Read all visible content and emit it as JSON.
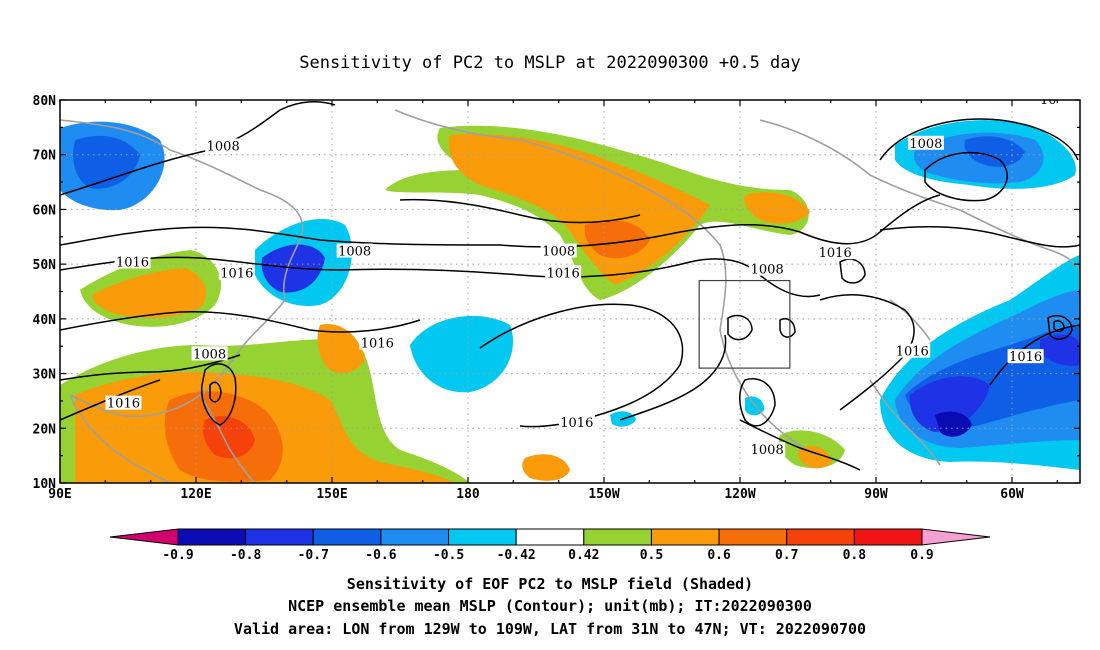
{
  "title": "Sensitivity of PC2 to MSLP at 2022090300 +0.5 day",
  "lon_ticks": [
    "90E",
    "120E",
    "150E",
    "180",
    "150W",
    "120W",
    "90W",
    "60W"
  ],
  "lat_ticks": [
    "10N",
    "20N",
    "30N",
    "40N",
    "50N",
    "60N",
    "70N",
    "80N"
  ],
  "contour_labels": [
    {
      "text": "1008",
      "lon": 126,
      "lat": 71.5
    },
    {
      "text": "1008",
      "lon": 155,
      "lat": 52.3
    },
    {
      "text": "1016",
      "lon": 106,
      "lat": 50.3
    },
    {
      "text": "1016",
      "lon": 129,
      "lat": 48.3
    },
    {
      "text": "1008",
      "lon": 123,
      "lat": 33.5
    },
    {
      "text": "1016",
      "lon": 160,
      "lat": 35.5
    },
    {
      "text": "1016",
      "lon": 104,
      "lat": 24.5
    },
    {
      "text": "1008",
      "lon": -160,
      "lat": 52.3
    },
    {
      "text": "1016",
      "lon": -159,
      "lat": 48.3
    },
    {
      "text": "1016",
      "lon": -156,
      "lat": 21.0
    },
    {
      "text": "1008",
      "lon": -114,
      "lat": 49.0
    },
    {
      "text": "1016",
      "lon": -99,
      "lat": 52.0
    },
    {
      "text": "1008",
      "lon": -114,
      "lat": 16.0
    },
    {
      "text": "1008",
      "lon": -79,
      "lat": 72.0
    },
    {
      "text": "1016",
      "lon": -82,
      "lat": 34.0
    },
    {
      "text": "1016",
      "lon": -57,
      "lat": 33.0
    },
    {
      "text": "10",
      "lon": -52,
      "lat": 80.0
    }
  ],
  "valid_box": {
    "lon_min": -129,
    "lon_max": -109,
    "lat_min": 31,
    "lat_max": 47
  },
  "colorbar": {
    "levels": [
      "-0.9",
      "-0.8",
      "-0.7",
      "-0.6",
      "-0.5",
      "-0.42",
      "0.42",
      "0.5",
      "0.6",
      "0.7",
      "0.8",
      "0.9"
    ],
    "colors": [
      "#0b0bb4",
      "#1e32e6",
      "#0f5fe6",
      "#1e8cf0",
      "#00c8f0",
      "#ffffff",
      "#96d232",
      "#fa9b0a",
      "#f56e0a",
      "#f5410a",
      "#f01414"
    ],
    "low_end_color": "#d2006e",
    "high_end_color": "#f5a0d2"
  },
  "caption_lines": [
    "Sensitivity of EOF PC2 to MSLP field (Shaded)",
    "NCEP ensemble mean MSLP (Contour); unit(mb); IT:2022090300",
    "Valid area: LON from 129W to 109W, LAT from 31N to 47N; VT: 2022090700"
  ]
}
